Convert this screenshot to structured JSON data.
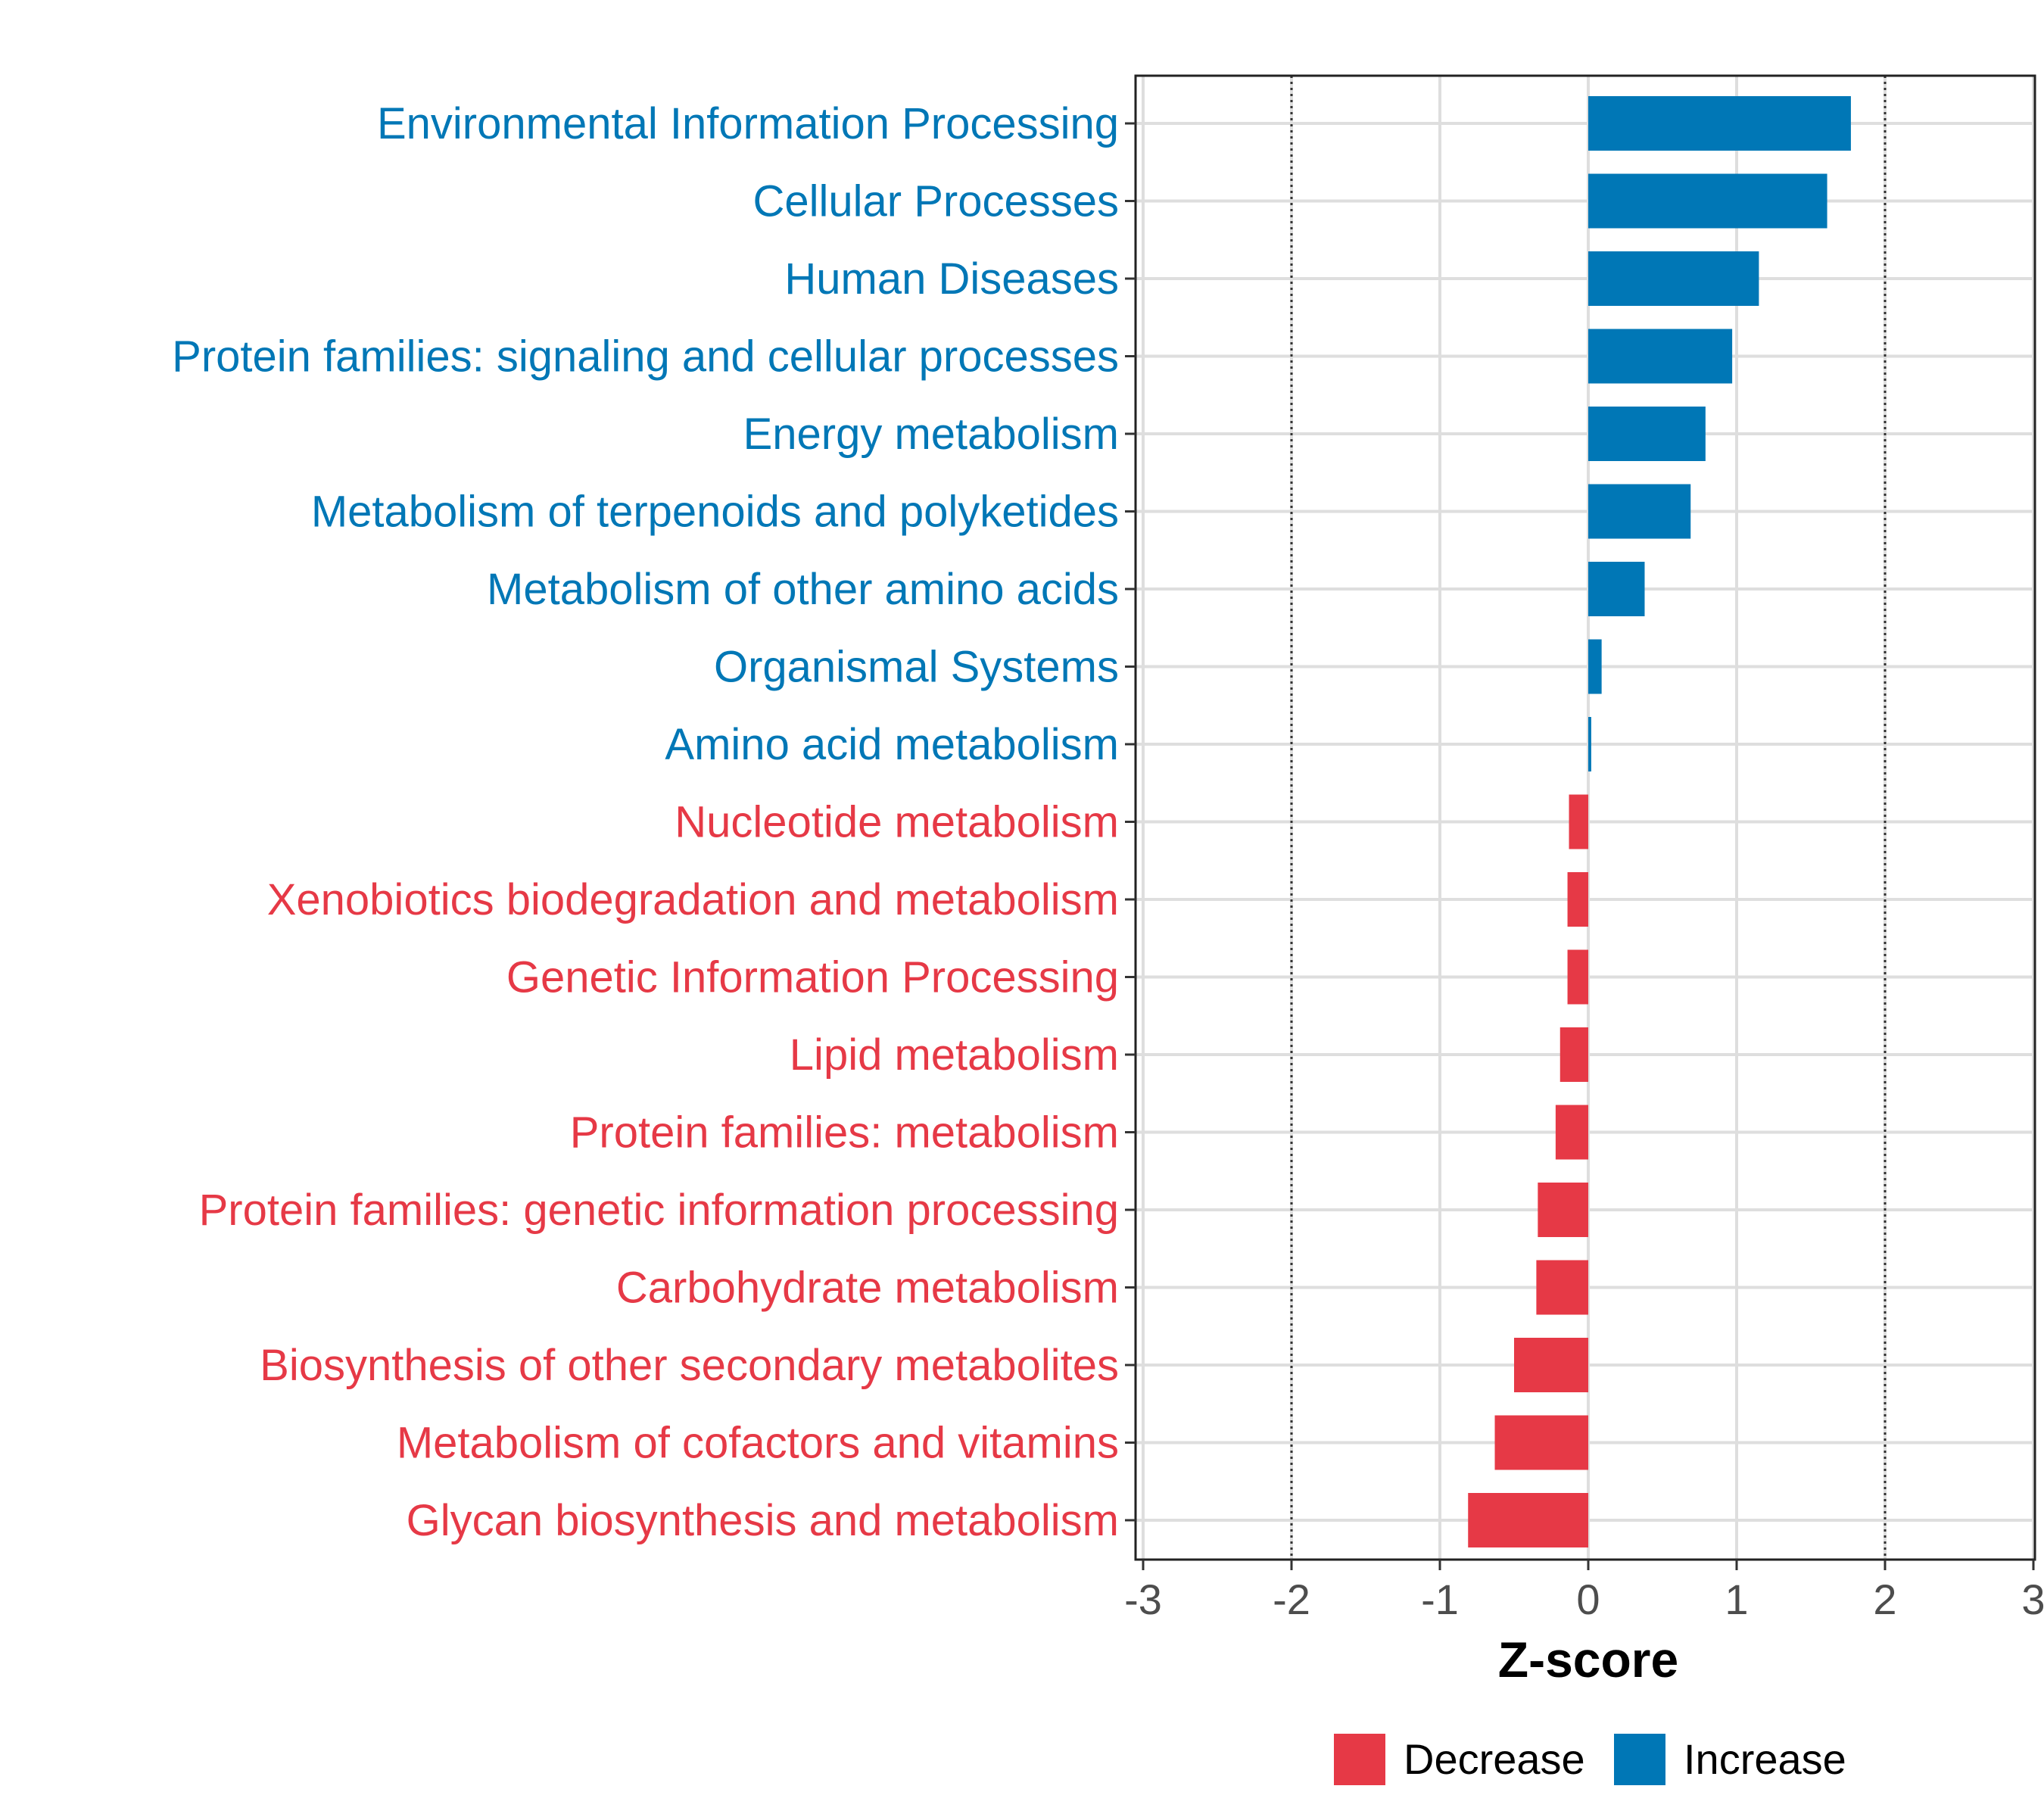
{
  "chart_data": {
    "type": "bar",
    "orientation": "horizontal",
    "title": "",
    "xlabel": "Z-score",
    "ylabel": "",
    "xlim": [
      -3,
      3
    ],
    "xticks": [
      -3,
      -2,
      -1,
      0,
      1,
      2,
      3
    ],
    "reference_lines": [
      -2,
      2
    ],
    "grid": true,
    "legend_position": "bottom",
    "colors": {
      "Decrease": "#E63946",
      "Increase": "#0077B6"
    },
    "legend": [
      {
        "label": "Decrease",
        "color": "#E63946"
      },
      {
        "label": "Increase",
        "color": "#0077B6"
      }
    ],
    "categories": [
      "Environmental Information Processing",
      "Cellular Processes",
      "Human Diseases",
      "Protein families: signaling and cellular processes",
      "Energy metabolism",
      "Metabolism of terpenoids and polyketides",
      "Metabolism of other amino acids",
      "Organismal Systems",
      "Amino acid metabolism",
      "Nucleotide metabolism",
      "Xenobiotics biodegradation and metabolism",
      "Genetic Information Processing",
      "Lipid metabolism",
      "Protein families: metabolism",
      "Protein families: genetic information processing",
      "Carbohydrate metabolism",
      "Biosynthesis of other secondary metabolites",
      "Metabolism of cofactors and vitamins",
      "Glycan biosynthesis and metabolism"
    ],
    "values": [
      1.77,
      1.61,
      1.15,
      0.97,
      0.79,
      0.69,
      0.38,
      0.09,
      0.02,
      -0.13,
      -0.14,
      -0.14,
      -0.19,
      -0.22,
      -0.34,
      -0.35,
      -0.5,
      -0.63,
      -0.81
    ],
    "groups": [
      "Increase",
      "Increase",
      "Increase",
      "Increase",
      "Increase",
      "Increase",
      "Increase",
      "Increase",
      "Increase",
      "Decrease",
      "Decrease",
      "Decrease",
      "Decrease",
      "Decrease",
      "Decrease",
      "Decrease",
      "Decrease",
      "Decrease",
      "Decrease"
    ]
  }
}
